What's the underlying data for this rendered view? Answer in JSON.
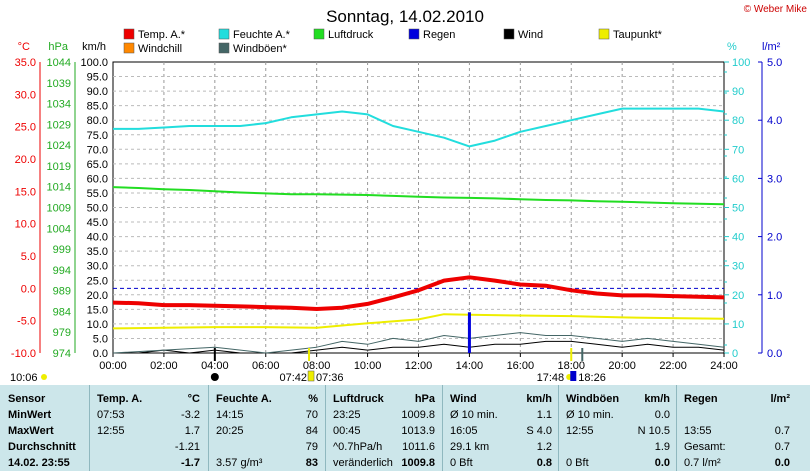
{
  "title": "Sonntag, 14.02.2010",
  "credit": "© Weber Mike",
  "legend": [
    {
      "label": "Temp. A.*",
      "color": "#ee0000"
    },
    {
      "label": "Feuchte A.*",
      "color": "#22dddd"
    },
    {
      "label": "Luftdruck",
      "color": "#22dd22"
    },
    {
      "label": "Regen",
      "color": "#0000dd"
    },
    {
      "label": "Wind",
      "color": "#000000"
    },
    {
      "label": "Taupunkt*",
      "color": "#eeee00"
    },
    {
      "label": "Windchill",
      "color": "#ff8800"
    },
    {
      "label": "Windböen*",
      "color": "#446666"
    }
  ],
  "chart_data": {
    "type": "line",
    "x_ticks": [
      "00:00",
      "02:00",
      "04:00",
      "06:00",
      "08:00",
      "10:00",
      "12:00",
      "14:00",
      "16:00",
      "18:00",
      "20:00",
      "22:00",
      "24:00"
    ],
    "axes": {
      "temp": {
        "unit": "°C",
        "ticks": [
          "35.0",
          "30.0",
          "25.0",
          "20.0",
          "15.0",
          "10.0",
          "5.0",
          "0.0",
          "-5.0",
          "-10.0"
        ],
        "range": [
          -10,
          35
        ],
        "color": "#ee0000"
      },
      "pressure": {
        "unit": "hPa",
        "ticks": [
          "1044",
          "1039",
          "1034",
          "1029",
          "1024",
          "1019",
          "1014",
          "1009",
          "1004",
          "999",
          "994",
          "989",
          "984",
          "979",
          "974"
        ],
        "range": [
          974,
          1044
        ],
        "color": "#22aa22"
      },
      "wind": {
        "unit": "km/h",
        "ticks": [
          "100.0",
          "95.0",
          "90.0",
          "85.0",
          "80.0",
          "75.0",
          "70.0",
          "65.0",
          "60.0",
          "55.0",
          "50.0",
          "45.0",
          "40.0",
          "35.0",
          "30.0",
          "25.0",
          "20.0",
          "15.0",
          "10.0",
          "5.0",
          "0.0"
        ],
        "range": [
          0,
          100
        ],
        "color": "#000000"
      },
      "humidity": {
        "unit": "%",
        "ticks": [
          "100",
          "90",
          "80",
          "70",
          "60",
          "50",
          "40",
          "30",
          "20",
          "10",
          "0"
        ],
        "range": [
          0,
          100
        ],
        "color": "#22cccc"
      },
      "rain": {
        "unit": "l/m²",
        "ticks": [
          "5.0",
          "4.0",
          "3.0",
          "2.0",
          "1.0",
          "0.0"
        ],
        "range": [
          0,
          5
        ],
        "color": "#0000cc"
      }
    },
    "series": [
      {
        "name": "Temp. A.*",
        "axis": "temp",
        "color": "#ee0000",
        "width": 4,
        "x": [
          0,
          1,
          2,
          3,
          4,
          5,
          6,
          7,
          8,
          9,
          10,
          11,
          12,
          13,
          14,
          15,
          16,
          17,
          18,
          19,
          20,
          21,
          22,
          23,
          24
        ],
        "y": [
          -2.2,
          -2.3,
          -2.6,
          -2.6,
          -2.7,
          -2.8,
          -2.9,
          -3.0,
          -3.2,
          -3.0,
          -2.4,
          -1.4,
          -0.3,
          1.2,
          1.7,
          1.2,
          0.6,
          0.4,
          -0.3,
          -0.8,
          -1.1,
          -1.1,
          -1.2,
          -1.3,
          -1.4
        ]
      },
      {
        "name": "Feuchte A.*",
        "axis": "humidity",
        "color": "#22dddd",
        "width": 2,
        "x": [
          0,
          1,
          2,
          3,
          4,
          5,
          6,
          7,
          8,
          9,
          10,
          11,
          12,
          13,
          14,
          15,
          16,
          17,
          18,
          19,
          20,
          21,
          22,
          23,
          24
        ],
        "y": [
          77,
          77,
          77.5,
          78,
          78,
          78,
          79,
          81,
          82,
          83,
          82,
          78,
          76,
          74,
          71,
          73,
          76,
          78,
          80,
          82,
          84,
          84,
          84,
          84,
          83
        ]
      },
      {
        "name": "Luftdruck",
        "axis": "pressure",
        "color": "#22dd22",
        "width": 2,
        "x": [
          0,
          1,
          2,
          3,
          4,
          5,
          6,
          7,
          8,
          9,
          10,
          11,
          12,
          13,
          14,
          15,
          16,
          17,
          18,
          19,
          20,
          21,
          22,
          23,
          24
        ],
        "y": [
          1013.9,
          1013.7,
          1013.4,
          1013.2,
          1012.9,
          1012.6,
          1012.4,
          1012.2,
          1012.2,
          1012.1,
          1012.0,
          1011.8,
          1011.6,
          1011.4,
          1011.3,
          1011.2,
          1011.0,
          1010.8,
          1010.7,
          1010.5,
          1010.4,
          1010.2,
          1010.0,
          1009.9,
          1009.8
        ]
      },
      {
        "name": "Taupunkt*",
        "axis": "temp",
        "color": "#eeee00",
        "width": 2,
        "x": [
          0,
          2,
          4,
          6,
          8,
          10,
          12,
          13,
          14,
          16,
          18,
          20,
          22,
          24
        ],
        "y": [
          -6.2,
          -6.1,
          -6.0,
          -6.0,
          -6.1,
          -5.4,
          -4.8,
          -4.0,
          -4.1,
          -4.2,
          -4.3,
          -4.5,
          -4.6,
          -4.7
        ]
      },
      {
        "name": "Wind",
        "axis": "wind",
        "color": "#000000",
        "width": 1,
        "x": [
          0,
          1,
          2,
          3,
          4,
          5,
          6,
          7,
          8,
          9,
          10,
          11,
          12,
          13,
          14,
          15,
          16,
          17,
          18,
          19,
          20,
          21,
          22,
          23,
          24
        ],
        "y": [
          0,
          0,
          1,
          0,
          1,
          0,
          0,
          0,
          1,
          2,
          1,
          2,
          2,
          3,
          2,
          3,
          3,
          4,
          4,
          3,
          2,
          3,
          2,
          2,
          1
        ]
      },
      {
        "name": "Windböen*",
        "axis": "wind",
        "color": "#446666",
        "width": 1,
        "x": [
          0,
          2,
          4,
          6,
          8,
          9,
          10,
          11,
          12,
          13,
          14,
          15,
          16,
          17,
          18,
          19,
          20,
          21,
          22,
          23,
          24
        ],
        "y": [
          0,
          1,
          2,
          0,
          2,
          4,
          3,
          5,
          4,
          6,
          5,
          6,
          7,
          6,
          6,
          5,
          4,
          5,
          4,
          3,
          2
        ]
      }
    ],
    "dashed_zero_line": {
      "axis": "temp",
      "value": 0.0,
      "color": "#0000cc"
    },
    "rain_bar": {
      "x": 14,
      "value": 0.7
    }
  },
  "sun_times": {
    "sunrise": "07:42",
    "dawn": "07:36",
    "sunset": "17:48",
    "dusk": "18:26",
    "moon_left": "10:06",
    "moon_mid_left": "04:00",
    "moon_right": "18:00"
  },
  "table": {
    "col1": {
      "head": "Sensor",
      "rows": [
        "MinWert",
        "MaxWert",
        "Durchschnitt",
        "14.02. 23:55"
      ]
    },
    "temp": {
      "head": "Temp. A.",
      "unit": "°C",
      "rows": [
        [
          "07:53",
          "-3.2"
        ],
        [
          "12:55",
          "1.7"
        ],
        [
          "",
          "-1.21"
        ],
        [
          "",
          "-1.7"
        ]
      ]
    },
    "hum": {
      "head": "Feuchte A.",
      "unit": "%",
      "rows": [
        [
          "14:15",
          "70"
        ],
        [
          "20:25",
          "84"
        ],
        [
          "",
          "79"
        ],
        [
          "3.57 g/m³",
          "83"
        ]
      ]
    },
    "press": {
      "head": "Luftdruck",
      "unit": "hPa",
      "rows": [
        [
          "23:25",
          "1009.8"
        ],
        [
          "00:45",
          "1013.9"
        ],
        [
          "^0.7hPa/h",
          "1011.6"
        ],
        [
          "veränderlich",
          "1009.8"
        ]
      ]
    },
    "wind": {
      "head": "Wind",
      "unit": "km/h",
      "rows": [
        [
          "Ø 10 min.",
          "1.1"
        ],
        [
          "16:05",
          "S 4.0"
        ],
        [
          "29.1 km",
          "1.2"
        ],
        [
          "0 Bft",
          "0.8"
        ]
      ]
    },
    "gust": {
      "head": "Windböen",
      "unit": "km/h",
      "rows": [
        [
          "Ø 10 min.",
          "0.0"
        ],
        [
          "12:55",
          "N 10.5"
        ],
        [
          "",
          "1.9"
        ],
        [
          "0 Bft",
          "0.0"
        ]
      ]
    },
    "rain": {
      "head": "Regen",
      "unit": "l/m²",
      "rows": [
        [
          "",
          ""
        ],
        [
          "13:55",
          "0.7"
        ],
        [
          "Gesamt:",
          "0.7"
        ],
        [
          "0.7 l/m²",
          "0.0"
        ]
      ]
    }
  }
}
